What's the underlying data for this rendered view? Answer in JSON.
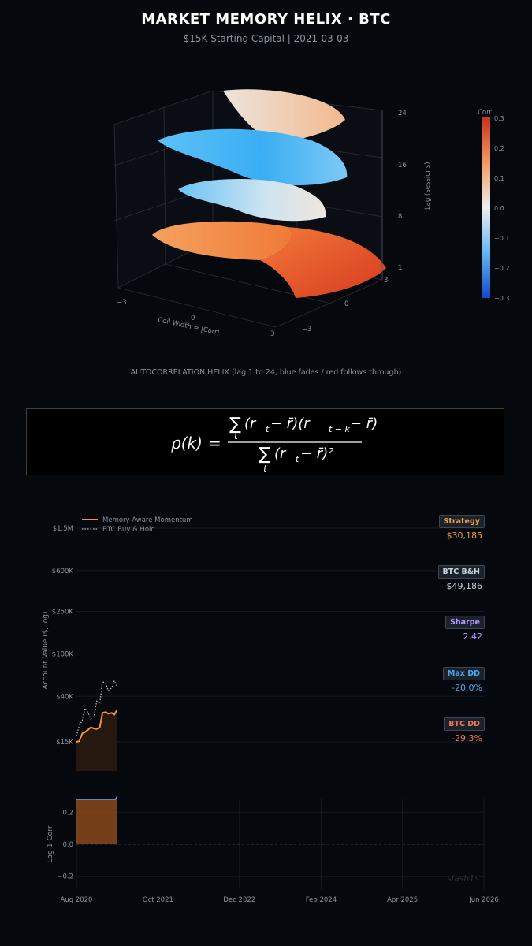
{
  "header": {
    "title": "MARKET MEMORY HELIX  ·  BTC",
    "subtitle": "$15K Starting Capital  |  2021-03-03"
  },
  "helix": {
    "caption": "AUTOCORRELATION HELIX   (lag 1 to 24, blue fades / red follows through)",
    "axis_x_label": "Coil Width = |Corr|",
    "axis_x_ticks": [
      "−3",
      "0",
      "3"
    ],
    "axis_y_ticks": [
      "−3",
      "0",
      "3"
    ],
    "axis_z_label": "Lag (sessions)",
    "axis_z_ticks": [
      "1",
      "8",
      "16",
      "24"
    ],
    "colorbar_label": "Corr",
    "colorbar_ticks": [
      "0.3",
      "0.2",
      "0.1",
      "0.0",
      "−0.1",
      "−0.2",
      "−0.3"
    ],
    "colors": {
      "neg": "#3ab0f5",
      "mid": "#ece4dc",
      "pos": "#f26b2a",
      "deep_pos": "#d9361e"
    }
  },
  "formula": {
    "lhs": "ρ(k)",
    "eq": "=",
    "sum_symbol": "∑",
    "sub_t": "t",
    "numerator": "(r",
    "num_t": "t",
    "num_mid": " − r̄)(r",
    "num_tk": "t − k",
    "num_end": " − r̄)",
    "denominator": "(r",
    "den_t": "t",
    "den_end": " − r̄)²"
  },
  "stats": [
    {
      "label": "Strategy",
      "value": "$30,185",
      "color": "#f2a03d"
    },
    {
      "label": "BTC B&H",
      "value": "$49,186",
      "color": "#c9d1d9"
    },
    {
      "label": "Sharpe",
      "value": "2.42",
      "color": "#b49cff"
    },
    {
      "label": "Max DD",
      "value": "-20.0%",
      "color": "#4aa8f0"
    },
    {
      "label": "BTC DD",
      "value": "-29.3%",
      "color": "#f2755a"
    }
  ],
  "chart_data": [
    {
      "type": "line",
      "ylabel": "Account Value ($, log)",
      "yscale": "log",
      "y_ticks": [
        15000,
        40000,
        100000,
        250000,
        600000,
        1500000
      ],
      "y_tick_labels": [
        "$15K",
        "$40K",
        "$100K",
        "$250K",
        "$600K",
        "$1.5M"
      ],
      "x_range": [
        "2020-08-01",
        "2026-06-01"
      ],
      "legend_position": "top-left",
      "grid": true,
      "series": [
        {
          "name": "Memory-Aware Momentum",
          "style": "solid",
          "color": "#f2953a",
          "x": [
            "2020-08-01",
            "2020-08-15",
            "2020-09-01",
            "2020-09-15",
            "2020-10-01",
            "2020-10-15",
            "2020-11-01",
            "2020-11-15",
            "2020-12-01",
            "2020-12-15",
            "2021-01-01",
            "2021-01-15",
            "2021-02-01",
            "2021-02-15",
            "2021-03-03"
          ],
          "y": [
            15000,
            15200,
            18000,
            18500,
            19500,
            20500,
            20000,
            19800,
            20500,
            28000,
            28500,
            27500,
            28000,
            27000,
            30185
          ]
        },
        {
          "name": "BTC Buy & Hold",
          "style": "dotted",
          "color": "#b8c0cc",
          "x": [
            "2020-08-01",
            "2020-08-15",
            "2020-09-01",
            "2020-09-15",
            "2020-10-01",
            "2020-10-15",
            "2020-11-01",
            "2020-11-15",
            "2020-12-01",
            "2020-12-15",
            "2021-01-01",
            "2021-01-15",
            "2021-02-01",
            "2021-02-15",
            "2021-03-03"
          ],
          "y": [
            17000,
            21000,
            24000,
            31000,
            28000,
            24500,
            26000,
            36000,
            34000,
            55000,
            53000,
            45000,
            48000,
            56000,
            49186
          ]
        }
      ]
    },
    {
      "type": "area",
      "ylabel": "Lag-1 Corr",
      "y_range": [
        -0.28,
        0.28
      ],
      "y_ticks": [
        -0.2,
        0.0,
        0.2
      ],
      "y_tick_labels": [
        "−0.2",
        "0.0",
        "0.2"
      ],
      "x_range": [
        "2020-08-01",
        "2026-06-01"
      ],
      "x_ticks": [
        "2020-08-01",
        "2021-10-01",
        "2022-12-01",
        "2024-02-01",
        "2025-04-01",
        "2026-06-01"
      ],
      "x_tick_labels": [
        "Aug 2020",
        "Oct 2021",
        "Dec 2022",
        "Feb 2024",
        "Apr 2025",
        "Jun 2026"
      ],
      "grid": true,
      "series": [
        {
          "name": "",
          "color": "#4aa8f0",
          "x": [
            "2020-08-01",
            "2020-10-01",
            "2020-12-01",
            "2021-02-01",
            "2021-02-20",
            "2021-03-03"
          ],
          "y": [
            0.28,
            0.28,
            0.28,
            0.28,
            0.28,
            0.3
          ]
        }
      ]
    }
  ],
  "watermark": "slash1s"
}
